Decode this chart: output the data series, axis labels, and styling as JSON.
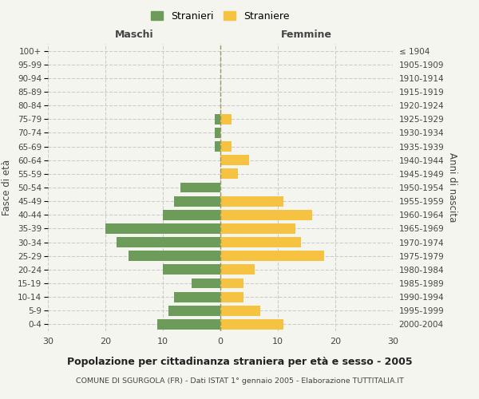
{
  "age_groups": [
    "0-4",
    "5-9",
    "10-14",
    "15-19",
    "20-24",
    "25-29",
    "30-34",
    "35-39",
    "40-44",
    "45-49",
    "50-54",
    "55-59",
    "60-64",
    "65-69",
    "70-74",
    "75-79",
    "80-84",
    "85-89",
    "90-94",
    "95-99",
    "100+"
  ],
  "birth_years": [
    "2000-2004",
    "1995-1999",
    "1990-1994",
    "1985-1989",
    "1980-1984",
    "1975-1979",
    "1970-1974",
    "1965-1969",
    "1960-1964",
    "1955-1959",
    "1950-1954",
    "1945-1949",
    "1940-1944",
    "1935-1939",
    "1930-1934",
    "1925-1929",
    "1920-1924",
    "1915-1919",
    "1910-1914",
    "1905-1909",
    "≤ 1904"
  ],
  "maschi": [
    11,
    9,
    8,
    5,
    10,
    16,
    18,
    20,
    10,
    8,
    7,
    0,
    0,
    1,
    1,
    1,
    0,
    0,
    0,
    0,
    0
  ],
  "femmine": [
    11,
    7,
    4,
    4,
    6,
    18,
    14,
    13,
    16,
    11,
    0,
    3,
    5,
    2,
    0,
    2,
    0,
    0,
    0,
    0,
    0
  ],
  "maschi_color": "#6d9b5a",
  "femmine_color": "#f5c242",
  "background_color": "#f5f5f0",
  "grid_color": "#cccccc",
  "title": "Popolazione per cittadinanza straniera per età e sesso - 2005",
  "subtitle": "COMUNE DI SGURGOLA (FR) - Dati ISTAT 1° gennaio 2005 - Elaborazione TUTTITALIA.IT",
  "ylabel_left": "Fasce di età",
  "ylabel_right": "Anni di nascita",
  "xlabel_maschi": "Maschi",
  "xlabel_femmine": "Femmine",
  "legend_maschi": "Stranieri",
  "legend_femmine": "Straniere",
  "xlim": 30
}
